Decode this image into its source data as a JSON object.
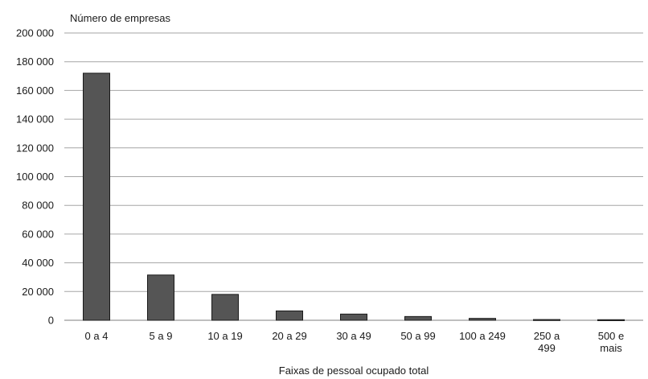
{
  "chart_data": {
    "type": "bar",
    "title": "",
    "ylabel": "Número de empresas",
    "xlabel": "Faixas de pessoal ocupado total",
    "ylim": [
      0,
      200000
    ],
    "yticks": [
      0,
      20000,
      40000,
      60000,
      80000,
      100000,
      120000,
      140000,
      160000,
      180000,
      200000
    ],
    "ytick_labels": [
      "0",
      "20 000",
      "40 000",
      "60 000",
      "80 000",
      "100 000",
      "120 000",
      "140 000",
      "160 000",
      "180 000",
      "200 000"
    ],
    "categories": [
      [
        "0 a 4"
      ],
      [
        "5 a 9"
      ],
      [
        "10 a 19"
      ],
      [
        "20 a 29"
      ],
      [
        "30 a 49"
      ],
      [
        "50 a 99"
      ],
      [
        "100 a 249"
      ],
      [
        "250 a",
        "499"
      ],
      [
        "500 e",
        "mais"
      ]
    ],
    "values": [
      172000,
      31500,
      18000,
      6500,
      4300,
      2600,
      1300,
      500,
      400
    ],
    "grid": true,
    "legend": "none",
    "bar_color": "#555555",
    "bar_edge_color": "#1a1a1a",
    "grid_color": "#a6a6a6"
  }
}
